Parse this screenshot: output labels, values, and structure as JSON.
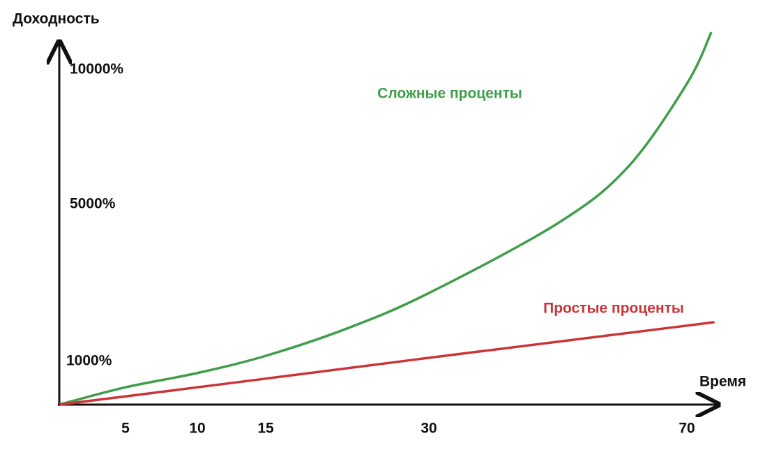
{
  "chart_data": {
    "type": "line",
    "y_label": "Доходность",
    "x_label": "Время",
    "xlim": [
      0,
      75
    ],
    "ylim": [
      0,
      11000
    ],
    "xticks": [
      5,
      10,
      15,
      30,
      70
    ],
    "yticks": [
      {
        "value": 1000,
        "label": "1000%"
      },
      {
        "value": 5000,
        "label": "5000%"
      },
      {
        "value": 10000,
        "label": "10000%"
      }
    ],
    "grid": false,
    "series": [
      {
        "name": "Сложные проценты",
        "color": "#3e9e4a",
        "x": [
          0,
          5,
          10,
          15,
          22.6,
          30,
          50,
          60.8,
          70,
          73.8
        ],
        "values": [
          0,
          400,
          730,
          1140,
          1850,
          2740,
          4520,
          6370,
          9480,
          11400
        ]
      },
      {
        "name": "Простые проценты",
        "color": "#cc3338",
        "x": [
          0,
          5,
          10,
          15,
          30,
          70,
          73.2
        ],
        "values": [
          0,
          190,
          400,
          600,
          1090,
          1910,
          1980
        ]
      }
    ]
  }
}
